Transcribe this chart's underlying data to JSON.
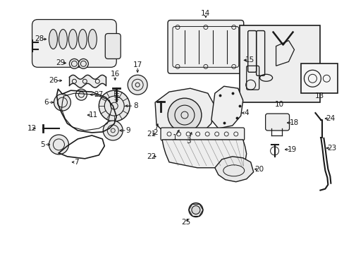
{
  "bg_color": "#ffffff",
  "fig_width": 4.89,
  "fig_height": 3.6,
  "dpi": 100,
  "lc": "#1a1a1a",
  "font_size": 7.5
}
